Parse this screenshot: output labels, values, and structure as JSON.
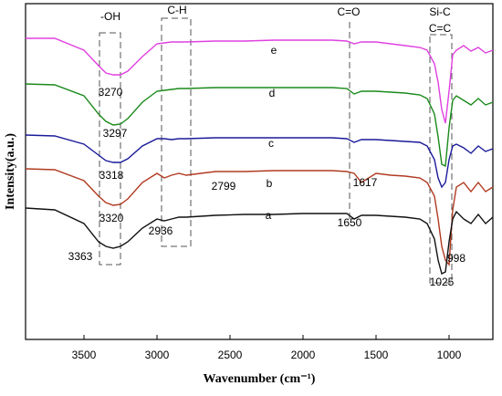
{
  "chart_data": {
    "type": "line",
    "xlabel": "Wavenumber (cm⁻¹)",
    "ylabel": "Intensity(a.u.)",
    "x": [
      3900,
      3700,
      3500,
      3400,
      3350,
      3300,
      3250,
      3200,
      3100,
      3000,
      2950,
      2900,
      2850,
      2800,
      2600,
      2400,
      2200,
      2000,
      1800,
      1700,
      1650,
      1600,
      1500,
      1400,
      1300,
      1200,
      1150,
      1100,
      1075,
      1050,
      1025,
      1000,
      975,
      950,
      900,
      850,
      800,
      750,
      700
    ],
    "xlim": [
      3900,
      700
    ],
    "xticks": [
      3500,
      3000,
      2500,
      2000,
      1500,
      1000
    ],
    "ylim": [
      0,
      368
    ],
    "yticks": [],
    "series": [
      {
        "name": "e",
        "color": "#e040e0",
        "values": [
          330,
          330,
          317,
          300,
          292,
          290,
          290,
          294,
          310,
          324,
          325,
          326,
          326,
          326,
          327,
          327,
          328,
          328,
          328,
          327,
          324,
          326,
          326,
          324,
          322,
          320,
          317,
          302,
          282,
          252,
          237,
          272,
          312,
          317,
          322,
          316,
          320,
          314,
          317
        ]
      },
      {
        "name": "d",
        "color": "#1a8a1a",
        "values": [
          280,
          279,
          267,
          247,
          239,
          235,
          236,
          242,
          260,
          272,
          273,
          274,
          275,
          275,
          276,
          276,
          276,
          276,
          276,
          275,
          269,
          272,
          272,
          271,
          270,
          268,
          264,
          247,
          222,
          192,
          190,
          232,
          262,
          267,
          262,
          257,
          264,
          257,
          260
        ]
      },
      {
        "name": "c",
        "color": "#1a1a9a",
        "values": [
          224,
          223,
          214,
          202,
          196,
          194,
          194,
          198,
          212,
          220,
          220,
          219,
          220,
          220,
          221,
          221,
          221,
          221,
          221,
          220,
          216,
          219,
          219,
          218,
          217,
          216,
          212,
          197,
          177,
          167,
          172,
          197,
          212,
          214,
          210,
          204,
          212,
          206,
          209
        ]
      },
      {
        "name": "b",
        "color": "#b03a20",
        "values": [
          187,
          186,
          174,
          157,
          150,
          147,
          148,
          154,
          172,
          182,
          177,
          180,
          182,
          180,
          184,
          184,
          185,
          185,
          185,
          184,
          182,
          172,
          182,
          180,
          179,
          177,
          172,
          157,
          132,
          102,
          87,
          82,
          142,
          167,
          172,
          162,
          172,
          162,
          167
        ]
      },
      {
        "name": "a",
        "color": "#111111",
        "values": [
          144,
          142,
          127,
          107,
          102,
          100,
          102,
          107,
          122,
          132,
          130,
          132,
          134,
          134,
          136,
          137,
          137,
          138,
          138,
          138,
          132,
          136,
          136,
          135,
          134,
          132,
          127,
          110,
          87,
          72,
          74,
          107,
          132,
          140,
          132,
          127,
          137,
          127,
          134
        ]
      }
    ],
    "annotations": [
      "-OH",
      "C-H",
      "C=O",
      "Si-C",
      "C=C",
      "3270",
      "3297",
      "3318",
      "3320",
      "3363",
      "2936",
      "2799",
      "1617",
      "1650",
      "998",
      "1025"
    ]
  }
}
